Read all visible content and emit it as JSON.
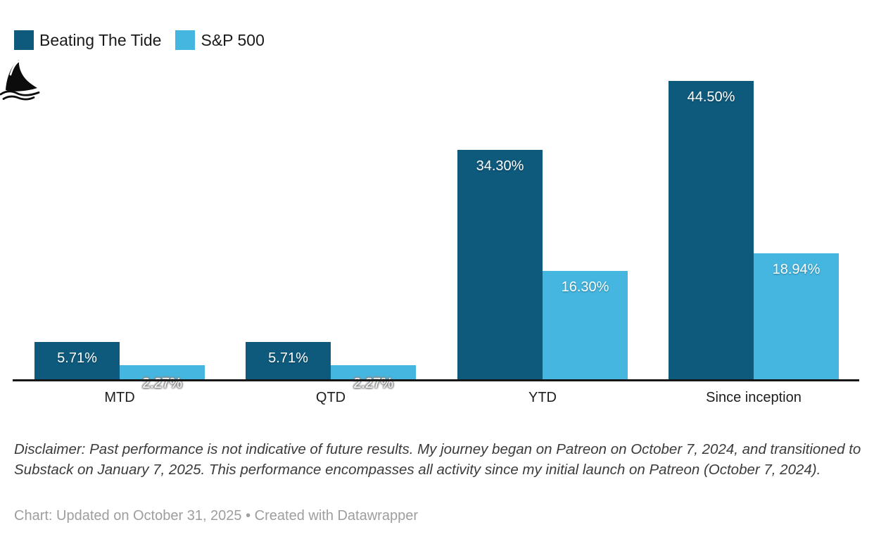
{
  "legend": {
    "items": [
      {
        "label": "Beating The Tide"
      },
      {
        "label": "S&P 500"
      }
    ]
  },
  "logo": {
    "name": "shark-fin-logo"
  },
  "chart_data": {
    "type": "bar",
    "categories": [
      "MTD",
      "QTD",
      "YTD",
      "Since inception"
    ],
    "series": [
      {
        "name": "Beating The Tide",
        "color": "#0e5a7d",
        "values": [
          5.71,
          5.71,
          34.3,
          44.5
        ],
        "labels": [
          "5.71%",
          "5.71%",
          "34.30%",
          "44.50%"
        ]
      },
      {
        "name": "S&P 500",
        "color": "#45b6e0",
        "values": [
          2.27,
          2.27,
          16.3,
          18.94
        ],
        "labels": [
          "2.27%",
          "2.27%",
          "16.30%",
          "18.94%"
        ]
      }
    ],
    "ylim": [
      0,
      46
    ],
    "grid": false,
    "legend_position": "top-left",
    "axis_color": "#161616",
    "value_labels": "on-bar-white"
  },
  "notes": {
    "disclaimer": "Disclaimer: Past performance is not indicative of future results. My journey began on Patreon on October 7, 2024, and transitioned to Substack on January 7, 2025. This performance encompasses all activity since my initial launch on Patreon (October 7, 2024).",
    "footer": "Chart: Updated on October 31, 2025 • Created with Datawrapper"
  }
}
